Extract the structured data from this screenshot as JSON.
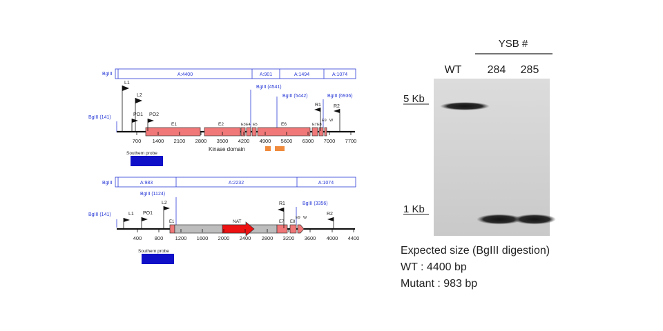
{
  "wt_map": {
    "bglii_label": "BgIII",
    "segments": [
      "A:4400",
      "A:901",
      "A:1494",
      "A:1074"
    ],
    "sites": [
      "BgIII (141)",
      "BgIII (4541)",
      "BgIII (5442)",
      "BgIII (6936)"
    ],
    "primers": [
      "L1",
      "L2",
      "PO1",
      "PO2",
      "R1",
      "R2"
    ],
    "exons": [
      "E1",
      "E2",
      "E3",
      "E4",
      "E5",
      "E6",
      "E7",
      "E8",
      "E9",
      "W"
    ],
    "ticks": [
      "700",
      "1400",
      "2100",
      "2800",
      "3500",
      "4200",
      "4900",
      "5600",
      "6300",
      "7000",
      "7700"
    ],
    "kinase_label": "Kinase domain",
    "probe_label": "Southern probe"
  },
  "mut_map": {
    "bglii_label": "BgIII",
    "segments": [
      "A:983",
      "A:2232",
      "A:1074"
    ],
    "sites": [
      "BgIII (141)",
      "BgIII (1124)",
      "BgIII (3356)"
    ],
    "primers": [
      "L1",
      "PO1",
      "L2",
      "R1",
      "R2"
    ],
    "exons": [
      "E1",
      "E7",
      "E8",
      "E9",
      "W"
    ],
    "marker": "NAT",
    "ticks": [
      "400",
      "800",
      "1200",
      "1600",
      "2000",
      "2400",
      "2800",
      "3200",
      "3600",
      "4000",
      "4400"
    ],
    "probe_label": "Southern probe"
  },
  "gel": {
    "group_label": "YSB #",
    "lanes": [
      "WT",
      "284",
      "285"
    ],
    "size_markers": [
      "5 Kb",
      "1 Kb"
    ]
  },
  "caption": {
    "line1": "Expected size (BgIII digestion)",
    "line2": "WT : 4400 bp",
    "line3": "Mutant : 983 bp"
  },
  "colors": {
    "exon": "#f07878",
    "nat": "#ee1111",
    "gray_region": "#bdbdbd",
    "probe": "#1010c8",
    "kinase": "#f08a3c",
    "site_label": "#2a3bd6"
  }
}
